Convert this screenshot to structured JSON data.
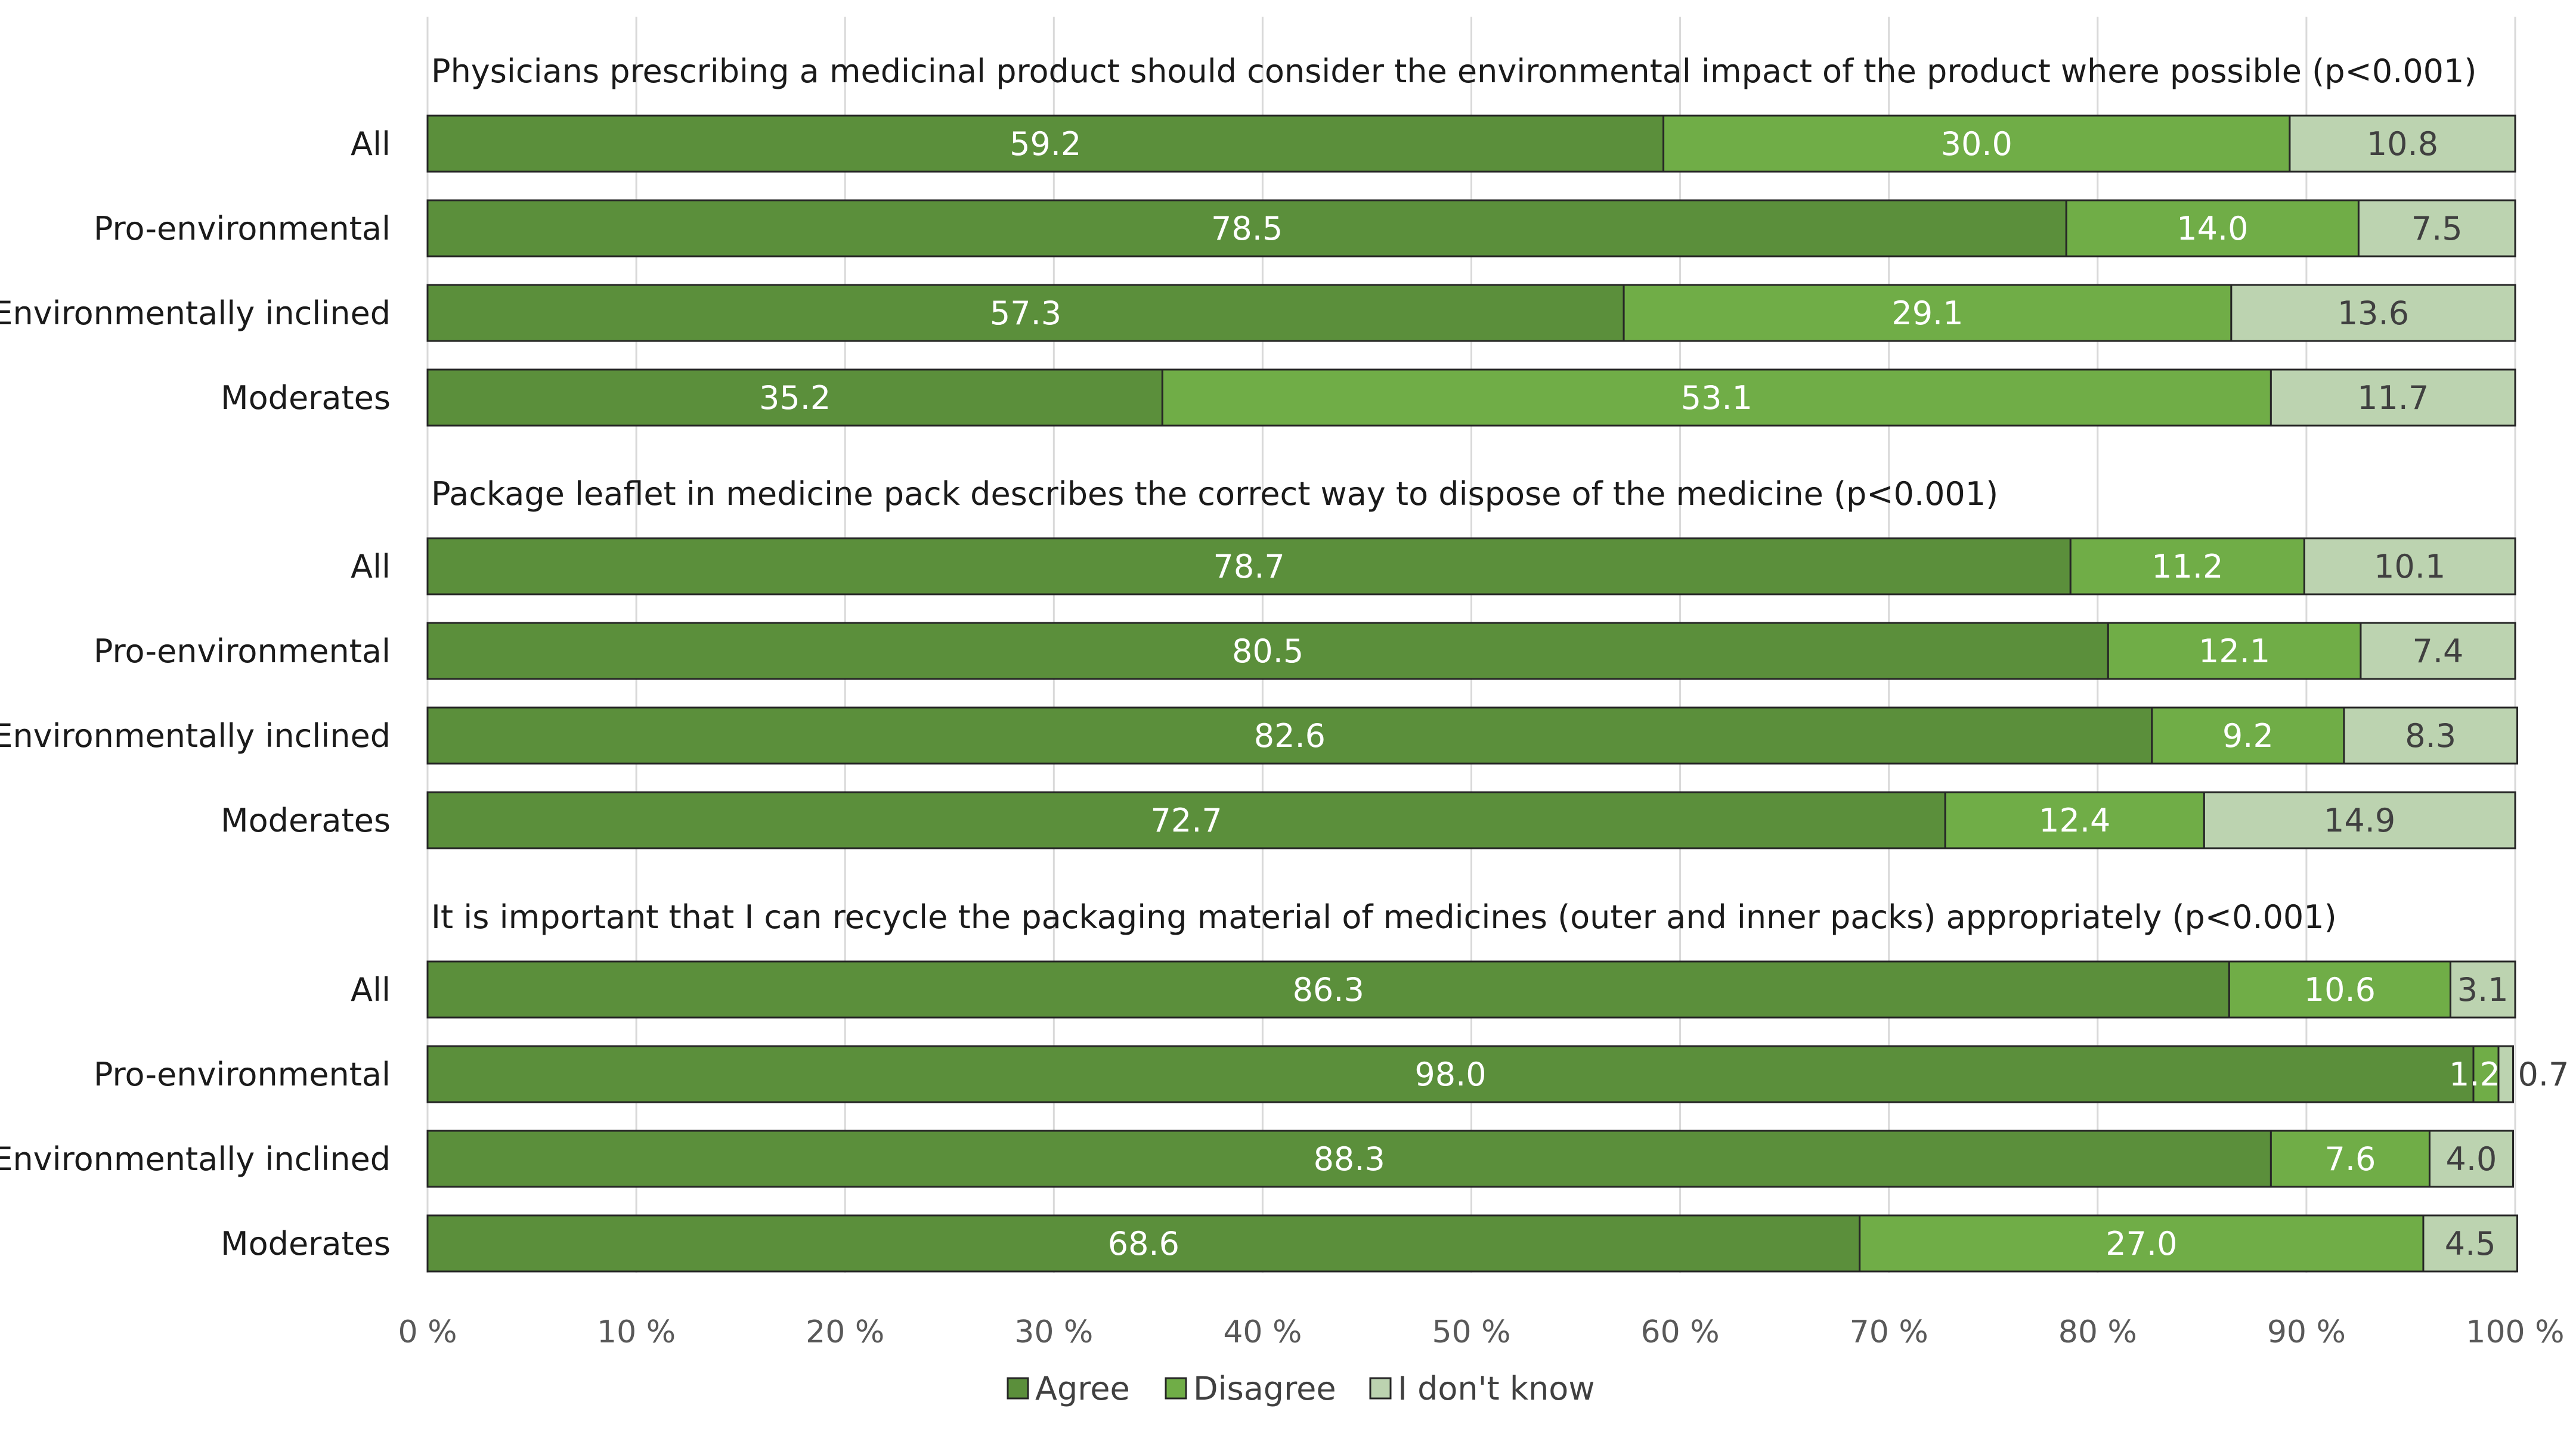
{
  "colors": {
    "agree": "#5b8f3b",
    "disagree": "#70ad47",
    "dont_know": "#bcd3b0",
    "gridline": "#d9d9d9",
    "label_on_dark": "#ffffff",
    "label_on_light": "#404040"
  },
  "chart_data": {
    "type": "bar",
    "orientation": "horizontal",
    "stacked": true,
    "xlim": [
      0,
      100
    ],
    "x_ticks": [
      "0 %",
      "10 %",
      "20 %",
      "30 %",
      "40 %",
      "50 %",
      "60 %",
      "70 %",
      "80 %",
      "90 %",
      "100 %"
    ],
    "grid": true,
    "legend_position": "bottom",
    "series_names": [
      "Agree",
      "Disagree",
      "I don't know"
    ],
    "groups": [
      {
        "title": "Physicians prescribing a medicinal product should consider the environmental impact of the product where possible (p<0.001)",
        "categories": [
          "All",
          "Pro-environmental",
          "Environmentally inclined",
          "Moderates"
        ],
        "series": [
          {
            "name": "Agree",
            "values": [
              59.2,
              78.5,
              57.3,
              35.2
            ]
          },
          {
            "name": "Disagree",
            "values": [
              30.0,
              14.0,
              29.1,
              53.1
            ]
          },
          {
            "name": "I don't know",
            "values": [
              10.8,
              7.5,
              13.6,
              11.7
            ]
          }
        ]
      },
      {
        "title": "Package leaflet in medicine pack describes the correct way to dispose of the medicine (p<0.001)",
        "categories": [
          "All",
          "Pro-environmental",
          "Environmentally inclined",
          "Moderates"
        ],
        "series": [
          {
            "name": "Agree",
            "values": [
              78.7,
              80.5,
              82.6,
              72.7
            ]
          },
          {
            "name": "Disagree",
            "values": [
              11.2,
              12.1,
              9.2,
              12.4
            ]
          },
          {
            "name": "I don't know",
            "values": [
              10.1,
              7.4,
              8.3,
              14.9
            ]
          }
        ]
      },
      {
        "title": "It is important that I can recycle the packaging material of medicines (outer and inner packs) appropriately (p<0.001)",
        "categories": [
          "All",
          "Pro-environmental",
          "Environmentally inclined",
          "Moderates"
        ],
        "series": [
          {
            "name": "Agree",
            "values": [
              86.3,
              98.0,
              88.3,
              68.6
            ]
          },
          {
            "name": "Disagree",
            "values": [
              10.6,
              1.2,
              7.6,
              27.0
            ]
          },
          {
            "name": "I don't know",
            "values": [
              3.1,
              0.7,
              4.0,
              4.5
            ]
          }
        ]
      }
    ]
  }
}
